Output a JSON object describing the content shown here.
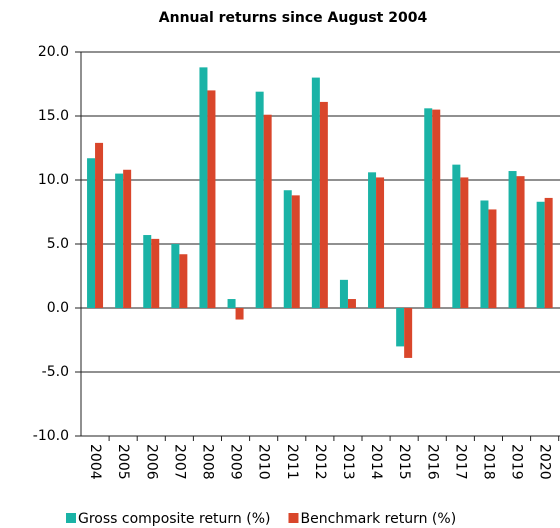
{
  "chart_data": {
    "type": "bar",
    "title": "Annual returns since August 2004",
    "categories": [
      "2004",
      "2005",
      "2006",
      "2007",
      "2008",
      "2009",
      "2010",
      "2011",
      "2012",
      "2013",
      "2014",
      "2015",
      "2016",
      "2017",
      "2018",
      "2019",
      "2020"
    ],
    "series": [
      {
        "name": "Gross composite return (%)",
        "color": "#1ab3a6",
        "values": [
          11.7,
          10.5,
          5.7,
          5.0,
          18.8,
          0.7,
          16.9,
          9.2,
          18.0,
          2.2,
          10.6,
          -3.0,
          15.6,
          11.2,
          8.4,
          10.7,
          8.3
        ]
      },
      {
        "name": "Benchmark return (%)",
        "color": "#d9462b",
        "values": [
          12.9,
          10.8,
          5.4,
          4.2,
          17.0,
          -0.9,
          15.1,
          8.8,
          16.1,
          0.7,
          10.2,
          -3.9,
          15.5,
          10.2,
          7.7,
          10.3,
          8.6
        ]
      }
    ],
    "ylim": [
      -10,
      20
    ],
    "yticks": [
      {
        "value": -10,
        "label": "-10.0"
      },
      {
        "value": -5,
        "label": "-5.0"
      },
      {
        "value": 0,
        "label": "0.0"
      },
      {
        "value": 5,
        "label": "5.0"
      },
      {
        "value": 10,
        "label": "10.0"
      },
      {
        "value": 15,
        "label": "15.0"
      },
      {
        "value": 20,
        "label": "20.0"
      }
    ],
    "grid": true
  }
}
